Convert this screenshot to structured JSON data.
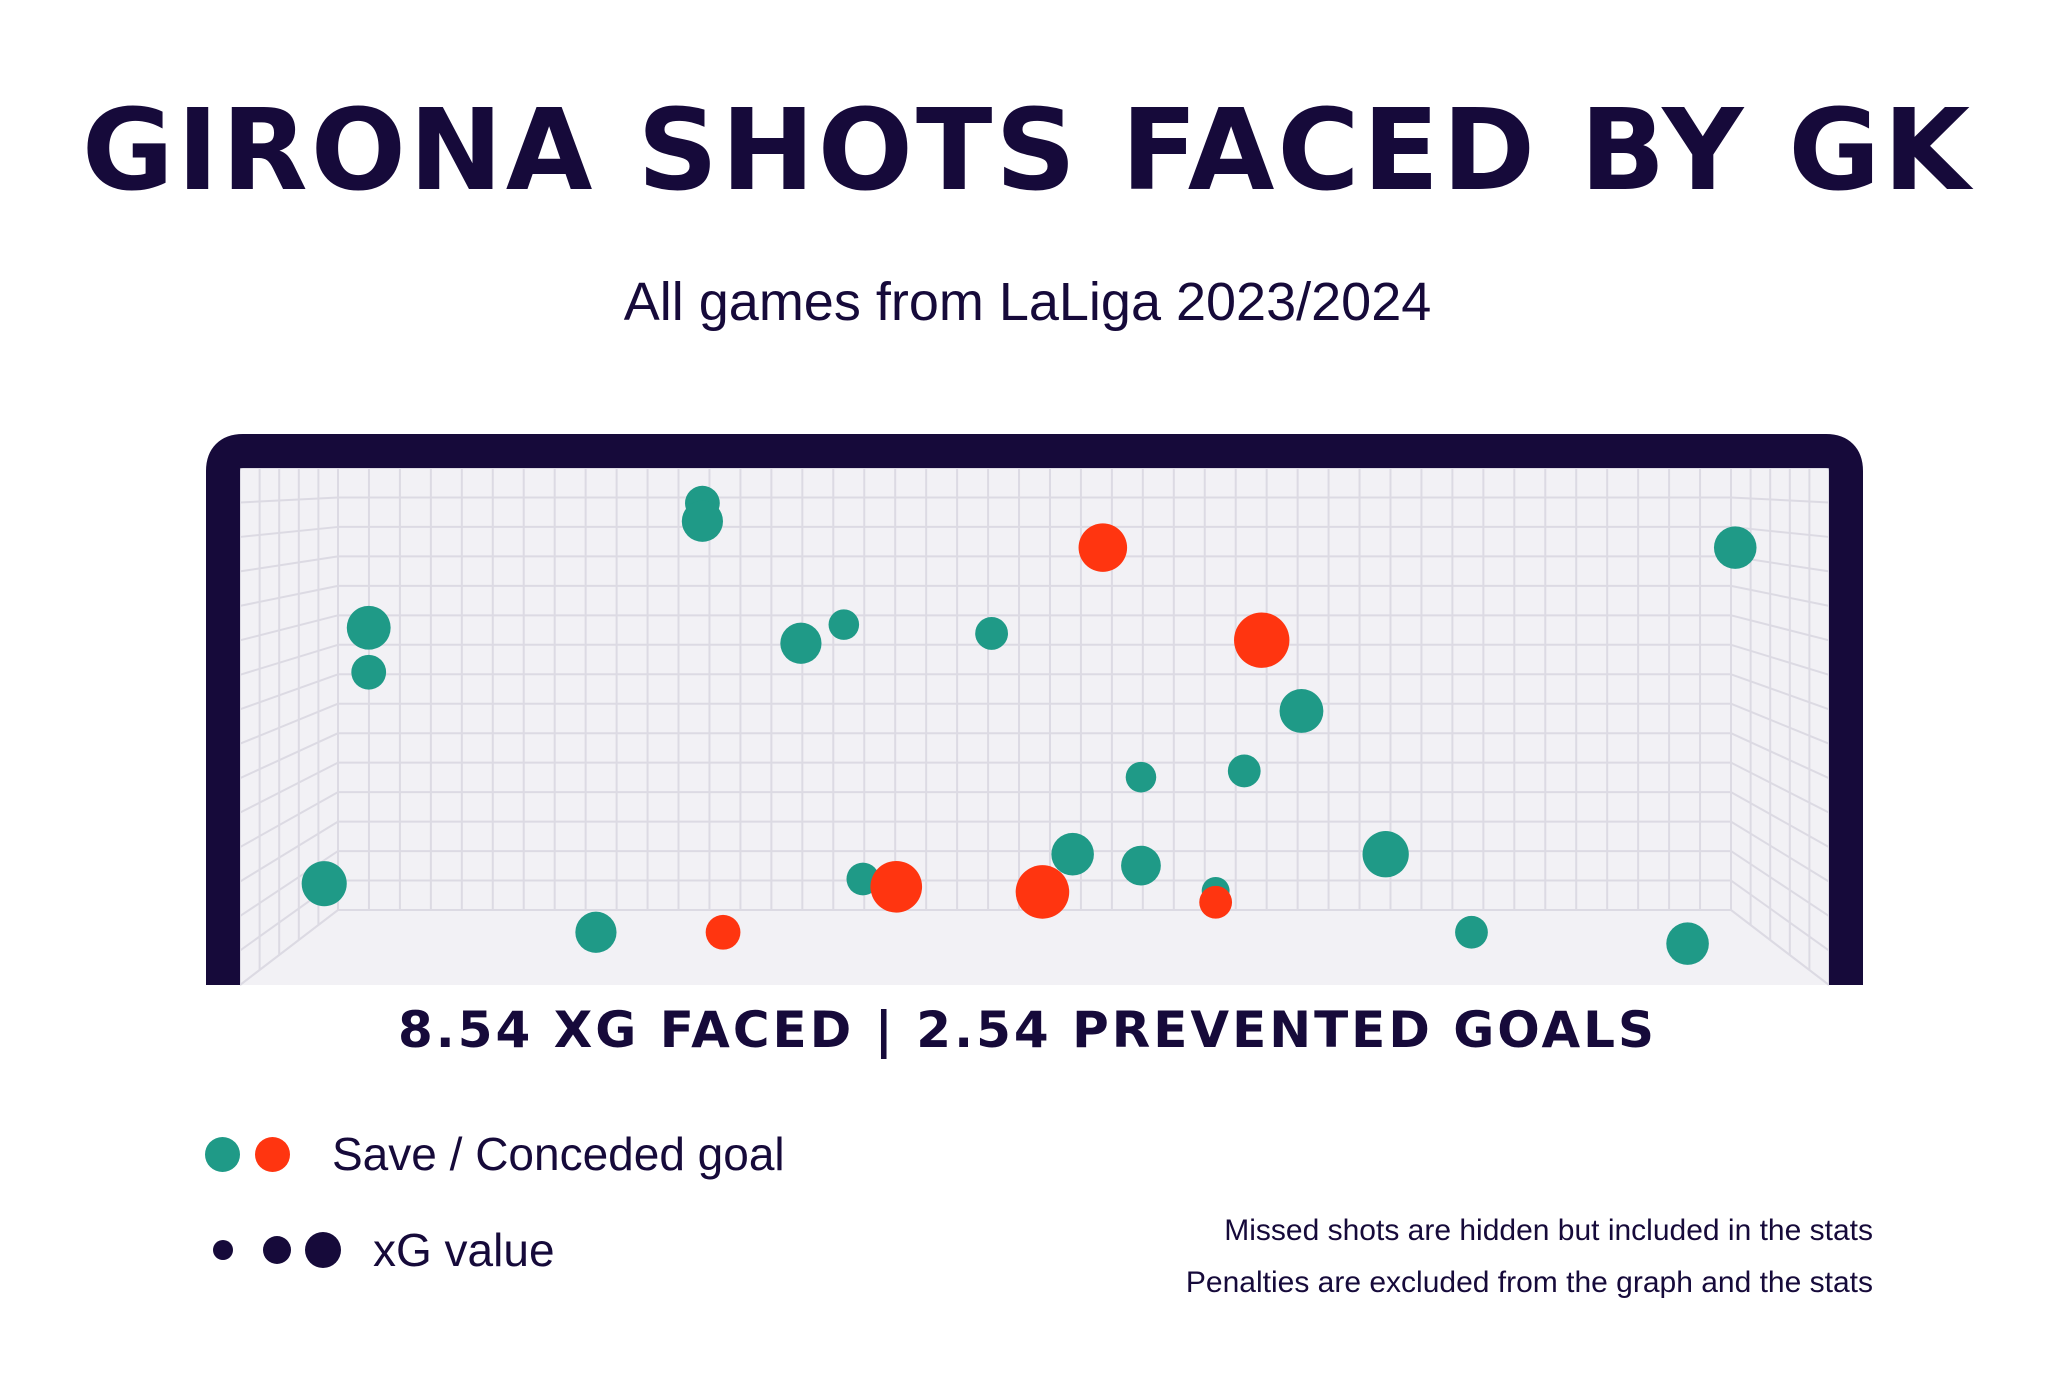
{
  "title": "GIRONA SHOTS FACED BY GK",
  "subtitle": "All games from LaLiga 2023/2024",
  "stats_line": "8.54 XG FACED | 2.54 PREVENTED GOALS",
  "legend": {
    "outcome_label": "Save / Conceded goal",
    "xg_label": "xG value"
  },
  "notes": [
    "Missed shots are hidden but included in the stats",
    "Penalties are excluded from the graph and the stats"
  ],
  "colors": {
    "save": "#1f9a87",
    "goal": "#ff3510",
    "frame": "#160a3a",
    "net_bg": "#f2f1f5",
    "net_line": "#dcdae3"
  },
  "chart_data": {
    "type": "scatter",
    "title": "GIRONA SHOTS FACED BY GK",
    "subtitle": "All games from LaLiga 2023/2024",
    "x_range": [
      0,
      1
    ],
    "y_range": [
      0,
      1
    ],
    "series": [
      {
        "name": "Save",
        "color": "#1f9a87",
        "points": [
          {
            "x": 0.291,
            "y": 0.932,
            "xg": 0.05
          },
          {
            "x": 0.291,
            "y": 0.897,
            "xg": 0.09
          },
          {
            "x": 0.081,
            "y": 0.691,
            "xg": 0.11
          },
          {
            "x": 0.081,
            "y": 0.605,
            "xg": 0.05
          },
          {
            "x": 0.353,
            "y": 0.661,
            "xg": 0.09
          },
          {
            "x": 0.38,
            "y": 0.697,
            "xg": 0.03
          },
          {
            "x": 0.473,
            "y": 0.68,
            "xg": 0.04
          },
          {
            "x": 0.668,
            "y": 0.53,
            "xg": 0.11
          },
          {
            "x": 0.567,
            "y": 0.402,
            "xg": 0.03
          },
          {
            "x": 0.632,
            "y": 0.414,
            "xg": 0.04
          },
          {
            "x": 0.524,
            "y": 0.253,
            "xg": 0.1
          },
          {
            "x": 0.567,
            "y": 0.231,
            "xg": 0.08
          },
          {
            "x": 0.721,
            "y": 0.253,
            "xg": 0.13
          },
          {
            "x": 0.392,
            "y": 0.205,
            "xg": 0.04
          },
          {
            "x": 0.053,
            "y": 0.196,
            "xg": 0.12
          },
          {
            "x": 0.614,
            "y": 0.182,
            "xg": 0.02
          },
          {
            "x": 0.224,
            "y": 0.102,
            "xg": 0.09
          },
          {
            "x": 0.775,
            "y": 0.102,
            "xg": 0.04
          },
          {
            "x": 0.911,
            "y": 0.08,
            "xg": 0.1
          },
          {
            "x": 0.941,
            "y": 0.846,
            "xg": 0.1
          }
        ]
      },
      {
        "name": "Conceded goal",
        "color": "#ff3510",
        "points": [
          {
            "x": 0.543,
            "y": 0.846,
            "xg": 0.15
          },
          {
            "x": 0.643,
            "y": 0.667,
            "xg": 0.22
          },
          {
            "x": 0.413,
            "y": 0.19,
            "xg": 0.18
          },
          {
            "x": 0.505,
            "y": 0.18,
            "xg": 0.2
          },
          {
            "x": 0.614,
            "y": 0.16,
            "xg": 0.04
          },
          {
            "x": 0.304,
            "y": 0.102,
            "xg": 0.05
          }
        ]
      }
    ],
    "xg_faced": 8.54,
    "prevented_goals": 2.54
  }
}
